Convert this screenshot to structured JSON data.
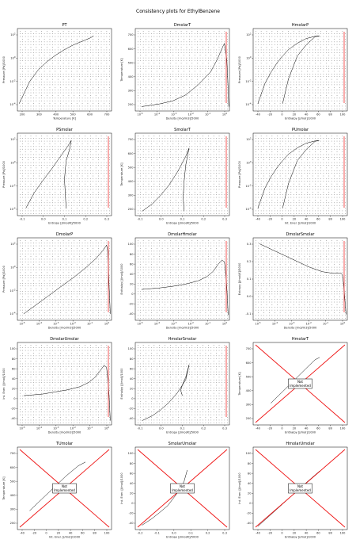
{
  "page": {
    "title": "Consistency plots for EthylBenzene"
  },
  "colors": {
    "axes": "#000000",
    "line": "#000000",
    "dots": "#333333",
    "red": "#ee1111",
    "box": "#000000"
  },
  "chart_data": [
    {
      "id": "pt",
      "type": "scatter",
      "title": "PT",
      "xlabel": "Temperature [K]",
      "ylabel": "Pressure [Pa]/1000",
      "xlim": [
        180,
        720
      ],
      "xscale": "linear",
      "xticks": [
        "200",
        "300",
        "400",
        "500",
        "600",
        "700"
      ],
      "ylim": [
        -5,
        4
      ],
      "yscale": "log",
      "yticks": [
        "10^-4",
        "10^-2",
        "10^0",
        "10^2"
      ],
      "saturation": {
        "x": [
          190,
          250,
          300,
          350,
          400,
          450,
          500,
          550,
          600,
          617
        ],
        "y": [
          -4.2,
          -1.8,
          -0.5,
          0.4,
          1.1,
          1.7,
          2.2,
          2.6,
          3.0,
          3.2
        ]
      },
      "red": false,
      "not_implemented": false
    },
    {
      "id": "dmolart",
      "type": "scatter",
      "title": "DmolarT",
      "xlabel": "Density [mol/m3]/5000",
      "ylabel": "Temperature [K]",
      "xlim": [
        -6,
        1.5
      ],
      "xscale": "log",
      "xticks": [
        "10^-5",
        "10^-4",
        "10^-3",
        "10^-2",
        "10^-1",
        "10^0"
      ],
      "ylim": [
        150,
        720
      ],
      "yscale": "linear",
      "yticks": [
        "200",
        "300",
        "400",
        "500",
        "600",
        "700"
      ],
      "saturation": {
        "x": [
          -5.5,
          -4,
          -3,
          -2,
          -1,
          0,
          0.5,
          0.8,
          1.0,
          1.1,
          1.3,
          1.4,
          1.45
        ],
        "y": [
          180,
          200,
          220,
          260,
          330,
          420,
          500,
          560,
          600,
          617,
          500,
          300,
          180
        ]
      },
      "red": true,
      "not_implemented": false
    },
    {
      "id": "hmolarp",
      "type": "scatter",
      "title": "HmolarP",
      "xlabel": "Enthalpy [J/mol]/1000",
      "ylabel": "Pressure [Pa]/1000",
      "xlim": [
        -50,
        110
      ],
      "xscale": "linear",
      "xticks": [
        "-40",
        "-20",
        "0",
        "20",
        "40",
        "60",
        "80",
        "100"
      ],
      "ylim": [
        -5,
        4
      ],
      "yscale": "log",
      "yticks": [
        "10^-4",
        "10^-2",
        "10^0",
        "10^2"
      ],
      "saturation": {
        "x": [
          -42,
          -30,
          -20,
          -10,
          0,
          10,
          25,
          40,
          55,
          63,
          55,
          40,
          25,
          10,
          0
        ],
        "y": [
          -4.2,
          -2,
          -0.8,
          0.2,
          1,
          1.7,
          2.4,
          2.9,
          3.15,
          3.2,
          3.1,
          2.2,
          1.0,
          -1.5,
          -4.2
        ]
      },
      "red": true,
      "not_implemented": false
    },
    {
      "id": "psmolar",
      "type": "scatter",
      "title": "PSmolar",
      "xlabel": "Entropy [J/mol/K]/5000",
      "ylabel": "Pressure [Pa]/1000",
      "xlim": [
        -0.2,
        0.36
      ],
      "xscale": "linear",
      "xticks": [
        "-0.1",
        "0.0",
        "0.1",
        "0.2",
        "0.3"
      ],
      "ylim": [
        -5,
        4
      ],
      "yscale": "log",
      "yticks": [
        "10^-4",
        "10^-2",
        "10^0",
        "10^2"
      ],
      "saturation": {
        "x": [
          -0.15,
          -0.1,
          -0.05,
          0,
          0.05,
          0.1,
          0.12,
          0.11,
          0.09,
          0.08,
          0.09
        ],
        "y": [
          -4.2,
          -2.5,
          -1.2,
          0,
          1.3,
          2.6,
          3.2,
          2.2,
          1,
          -1,
          -4.2
        ]
      },
      "red": true,
      "not_implemented": false
    },
    {
      "id": "smolart",
      "type": "scatter",
      "title": "SmolarT",
      "xlabel": "Entropy [J/mol/K]/5000",
      "ylabel": "Temperature [K]",
      "xlim": [
        -0.2,
        0.36
      ],
      "xscale": "linear",
      "xticks": [
        "-0.1",
        "0.0",
        "0.1",
        "0.2",
        "0.3"
      ],
      "ylim": [
        150,
        720
      ],
      "yscale": "linear",
      "yticks": [
        "200",
        "300",
        "400",
        "500",
        "600",
        "700"
      ],
      "saturation": {
        "x": [
          -0.16,
          -0.1,
          -0.05,
          0,
          0.05,
          0.1,
          0.12,
          0.1,
          0.09,
          0.085,
          0.09
        ],
        "y": [
          180,
          230,
          290,
          360,
          450,
          560,
          617,
          500,
          380,
          280,
          180
        ]
      },
      "red": true,
      "not_implemented": false
    },
    {
      "id": "pumolar",
      "type": "scatter",
      "title": "PUmolar",
      "xlabel": "Int. Ener. [J/mol]/1000",
      "ylabel": "Pressure [Pa]/1000",
      "xlim": [
        -50,
        110
      ],
      "xscale": "linear",
      "xticks": [
        "-40",
        "-20",
        "0",
        "20",
        "40",
        "60",
        "80",
        "100"
      ],
      "ylim": [
        -5,
        4
      ],
      "yscale": "log",
      "yticks": [
        "10^-4",
        "10^-2",
        "10^0",
        "10^2"
      ],
      "saturation": {
        "x": [
          -42,
          -30,
          -20,
          -10,
          0,
          10,
          25,
          40,
          55,
          62,
          55,
          40,
          25,
          10,
          0
        ],
        "y": [
          -4.2,
          -2,
          -0.8,
          0.2,
          1,
          1.7,
          2.4,
          2.9,
          3.15,
          3.2,
          3.1,
          2.2,
          1.0,
          -1.5,
          -4.2
        ]
      },
      "red": true,
      "not_implemented": false
    },
    {
      "id": "dmolarp",
      "type": "scatter",
      "title": "DmolarP",
      "xlabel": "Density [mol/m3]/5000",
      "ylabel": "Pressure [Pa]/1000",
      "xlim": [
        -6,
        1.5
      ],
      "xscale": "log",
      "xticks": [
        "10^-5",
        "10^-4",
        "10^-3",
        "10^-2",
        "10^-1",
        "10^0"
      ],
      "ylim": [
        -5,
        4
      ],
      "yscale": "log",
      "yticks": [
        "10^-4",
        "10^-2",
        "10^0",
        "10^2"
      ],
      "saturation": {
        "x": [
          -5.5,
          -4.5,
          -3.5,
          -2.5,
          -1.5,
          -0.5,
          0.3,
          0.8,
          1.0,
          1.1,
          1.2,
          1.3,
          1.4
        ],
        "y": [
          -4.3,
          -3.3,
          -2.3,
          -1.3,
          -0.3,
          0.8,
          1.8,
          2.6,
          3.0,
          3.2,
          2.6,
          -1,
          -4.3
        ]
      },
      "red": true,
      "not_implemented": false
    },
    {
      "id": "dmolarhmolar",
      "type": "scatter",
      "title": "DmolarHmolar",
      "xlabel": "Density [mol/m3]/5000",
      "ylabel": "Enthalpy [J/mol]/1000",
      "xlim": [
        -6,
        1.5
      ],
      "xscale": "log",
      "xticks": [
        "10^-5",
        "10^-4",
        "10^-3",
        "10^-2",
        "10^-1",
        "10^0"
      ],
      "ylim": [
        -50,
        105
      ],
      "yscale": "linear",
      "yticks": [
        "-40",
        "-20",
        "0",
        "20",
        "40",
        "60",
        "80",
        "100"
      ],
      "saturation": {
        "x": [
          -5.5,
          -4,
          -3,
          -2,
          -1,
          -0.3,
          0.2,
          0.6,
          0.9,
          1.1,
          1.2,
          1.3,
          1.4
        ],
        "y": [
          8,
          11,
          14,
          18,
          24,
          32,
          42,
          55,
          63,
          60,
          40,
          10,
          -40
        ]
      },
      "red": true,
      "not_implemented": false
    },
    {
      "id": "dmolarsmolar",
      "type": "scatter",
      "title": "DmolarSmolar",
      "xlabel": "Density [mol/m3]/5000",
      "ylabel": "Entropy [J/mol/K]/5000",
      "xlim": [
        -6,
        1.5
      ],
      "xscale": "log",
      "xticks": [
        "10^-5",
        "10^-4",
        "10^-3",
        "10^-2",
        "10^-1",
        "10^0"
      ],
      "ylim": [
        -0.2,
        0.36
      ],
      "yscale": "linear",
      "yticks": [
        "-0.1",
        "0.0",
        "0.1",
        "0.2",
        "0.3"
      ],
      "saturation": {
        "x": [
          -5.5,
          -4.5,
          -3.5,
          -2.5,
          -1.5,
          -0.5,
          0.3,
          0.8,
          1.0,
          1.1,
          1.2,
          1.3,
          1.4
        ],
        "y": [
          0.32,
          0.28,
          0.24,
          0.2,
          0.16,
          0.13,
          0.12,
          0.12,
          0.12,
          0.11,
          0.05,
          -0.05,
          -0.16
        ]
      },
      "red": true,
      "not_implemented": false
    },
    {
      "id": "dmolarumolar",
      "type": "scatter",
      "title": "DmolarUmolar",
      "xlabel": "Density [mol/m3]/5000",
      "ylabel": "Int. Ener. [J/mol]/1000",
      "xlim": [
        -6,
        1.5
      ],
      "xscale": "log",
      "xticks": [
        "10^-5",
        "10^-4",
        "10^-3",
        "10^-2",
        "10^-1",
        "10^0"
      ],
      "ylim": [
        -50,
        105
      ],
      "yscale": "linear",
      "yticks": [
        "-40",
        "-20",
        "0",
        "20",
        "40",
        "60",
        "80",
        "100"
      ],
      "saturation": {
        "x": [
          -5.5,
          -4,
          -3,
          -2,
          -1,
          -0.3,
          0.2,
          0.6,
          0.9,
          1.1,
          1.2,
          1.3,
          1.4
        ],
        "y": [
          5,
          8,
          12,
          16,
          22,
          30,
          40,
          52,
          62,
          58,
          38,
          8,
          -42
        ]
      },
      "red": true,
      "not_implemented": false
    },
    {
      "id": "hmolarsmolar",
      "type": "scatter",
      "title": "HmolarSmolar",
      "xlabel": "Entropy [J/mol/K]/5000",
      "ylabel": "Enthalpy [J/mol]/1000",
      "xlim": [
        -0.2,
        0.36
      ],
      "xscale": "linear",
      "xticks": [
        "-0.1",
        "0.0",
        "0.1",
        "0.2",
        "0.3"
      ],
      "ylim": [
        -50,
        105
      ],
      "yscale": "linear",
      "yticks": [
        "-40",
        "-20",
        "0",
        "20",
        "40",
        "60",
        "80",
        "100"
      ],
      "saturation": {
        "x": [
          -0.16,
          -0.1,
          -0.05,
          0,
          0.05,
          0.1,
          0.12,
          0.1,
          0.08,
          0.07,
          0.08
        ],
        "y": [
          -42,
          -33,
          -22,
          -8,
          10,
          35,
          63,
          40,
          25,
          15,
          5
        ]
      },
      "red": true,
      "not_implemented": false
    },
    {
      "id": "hmolart",
      "type": "scatter",
      "title": "HmolarT",
      "xlabel": "Enthalpy [J/mol]/1000",
      "ylabel": "Temperature [K]",
      "xlim": [
        -50,
        110
      ],
      "xscale": "linear",
      "xticks": [
        "-40",
        "-20",
        "0",
        "20",
        "40",
        "60",
        "80",
        "100"
      ],
      "ylim": [
        150,
        720
      ],
      "yscale": "linear",
      "yticks": [
        "200",
        "300",
        "400",
        "500",
        "600",
        "700"
      ],
      "saturation": {
        "x": [
          -20,
          0,
          20,
          40,
          55,
          63
        ],
        "y": [
          300,
          380,
          460,
          540,
          600,
          617
        ]
      },
      "red": true,
      "not_implemented": true,
      "not_implemented_text": "Not\nImplemented"
    },
    {
      "id": "tumolar",
      "type": "scatter",
      "title": "TUmolar",
      "xlabel": "Int. Ener. [J/mol]/1000",
      "ylabel": "Temperature [K]",
      "xlim": [
        -50,
        105
      ],
      "xscale": "linear",
      "xticks": [
        "-40",
        "-20",
        "0",
        "20",
        "40",
        "60",
        "80",
        "100"
      ],
      "ylim": [
        150,
        720
      ],
      "yscale": "linear",
      "yticks": [
        "200",
        "300",
        "400",
        "500",
        "600",
        "700"
      ],
      "saturation": {
        "x": [
          -30,
          -10,
          10,
          30,
          50,
          62
        ],
        "y": [
          280,
          360,
          440,
          520,
          590,
          617
        ]
      },
      "red": true,
      "not_implemented": true,
      "not_implemented_text": "Not\nImplemented"
    },
    {
      "id": "smolarumolar",
      "type": "scatter",
      "title": "SmolarUmolar",
      "xlabel": "Entropy [J/mol/K]/5000",
      "ylabel": "Int. Ener. [J/mol]/1000",
      "xlim": [
        -0.2,
        0.38
      ],
      "xscale": "linear",
      "xticks": [
        "-0.2",
        "-0.1",
        "0.0",
        "0.1",
        "0.2",
        "0.3"
      ],
      "ylim": [
        -50,
        105
      ],
      "yscale": "linear",
      "yticks": [
        "-40",
        "-20",
        "0",
        "20",
        "40",
        "60",
        "80",
        "100"
      ],
      "saturation": {
        "x": [
          -0.16,
          -0.1,
          -0.05,
          0,
          0.05,
          0.1,
          0.12
        ],
        "y": [
          -42,
          -30,
          -18,
          -5,
          15,
          40,
          62
        ]
      },
      "red": true,
      "not_implemented": true,
      "not_implemented_text": "Not\nImplemented"
    },
    {
      "id": "hmolarumolar",
      "type": "scatter",
      "title": "HmolarUmolar",
      "xlabel": "Enthalpy [J/mol]/1000",
      "ylabel": "Int. Ener. [J/mol]/1000",
      "xlim": [
        -50,
        110
      ],
      "xscale": "linear",
      "xticks": [
        "-40",
        "-20",
        "0",
        "20",
        "40",
        "60",
        "80",
        "100"
      ],
      "ylim": [
        -50,
        105
      ],
      "yscale": "linear",
      "yticks": [
        "-40",
        "-20",
        "0",
        "20",
        "40",
        "60",
        "80",
        "100"
      ],
      "saturation": {
        "x": [
          -42,
          -20,
          0,
          20,
          40,
          63
        ],
        "y": [
          -44,
          -22,
          -2,
          18,
          38,
          60
        ]
      },
      "red": true,
      "not_implemented": true,
      "not_implemented_text": "Not\nImplemented"
    }
  ]
}
